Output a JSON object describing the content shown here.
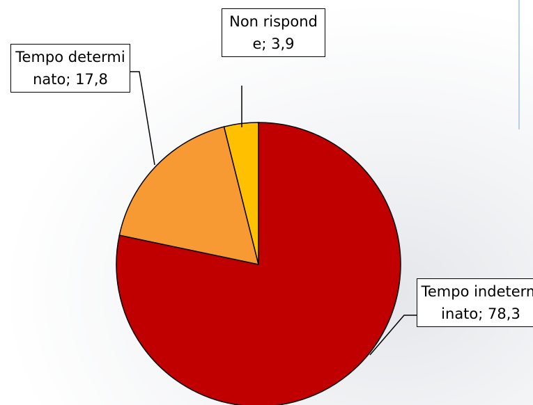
{
  "chart_data": {
    "type": "pie",
    "categories": [
      "Tempo indeterminato",
      "Tempo determinato",
      "Non risponde"
    ],
    "values": [
      78.3,
      17.8,
      3.9
    ],
    "value_labels": [
      "78,3",
      "17,8",
      "3,9"
    ],
    "label_separator": "; ",
    "colors": [
      "#c00000",
      "#f79a33",
      "#ffc000"
    ],
    "start_angle": 0,
    "direction": "clockwise"
  }
}
